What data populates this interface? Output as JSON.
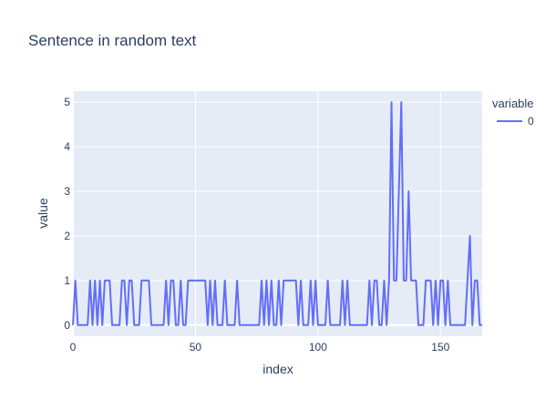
{
  "chart_data": {
    "type": "line",
    "title": "Sentence in random text",
    "xlabel": "index",
    "ylabel": "value",
    "xlim": [
      0,
      167
    ],
    "ylim": [
      -0.25,
      5.25
    ],
    "xticks": [
      0,
      50,
      100,
      150
    ],
    "yticks": [
      0,
      1,
      2,
      3,
      4,
      5
    ],
    "legend_title": "variable",
    "grid": true,
    "legend_position": "right",
    "colors": {
      "plot_bg": "#e5ecf6",
      "grid": "#ffffff",
      "line": "#636efa",
      "text": "#2a3f5f"
    },
    "series": [
      {
        "name": "0",
        "x": [
          0,
          1,
          2,
          3,
          4,
          5,
          6,
          7,
          8,
          9,
          10,
          11,
          12,
          13,
          14,
          15,
          16,
          17,
          18,
          19,
          20,
          21,
          22,
          23,
          24,
          25,
          26,
          27,
          28,
          29,
          30,
          31,
          32,
          33,
          34,
          35,
          36,
          37,
          38,
          39,
          40,
          41,
          42,
          43,
          44,
          45,
          46,
          47,
          48,
          49,
          50,
          51,
          52,
          53,
          54,
          55,
          56,
          57,
          58,
          59,
          60,
          61,
          62,
          63,
          64,
          65,
          66,
          67,
          68,
          69,
          70,
          71,
          72,
          73,
          74,
          75,
          76,
          77,
          78,
          79,
          80,
          81,
          82,
          83,
          84,
          85,
          86,
          87,
          88,
          89,
          90,
          91,
          92,
          93,
          94,
          95,
          96,
          97,
          98,
          99,
          100,
          101,
          102,
          103,
          104,
          105,
          106,
          107,
          108,
          109,
          110,
          111,
          112,
          113,
          114,
          115,
          116,
          117,
          118,
          119,
          120,
          121,
          122,
          123,
          124,
          125,
          126,
          127,
          128,
          129,
          130,
          131,
          132,
          133,
          134,
          135,
          136,
          137,
          138,
          139,
          140,
          141,
          142,
          143,
          144,
          145,
          146,
          147,
          148,
          149,
          150,
          151,
          152,
          153,
          154,
          155,
          156,
          157,
          158,
          159,
          160,
          161,
          162,
          163,
          164,
          165,
          166,
          167
        ],
        "values": [
          0,
          1,
          0,
          0,
          0,
          0,
          0,
          1,
          0,
          1,
          0,
          1,
          0,
          1,
          1,
          1,
          0,
          0,
          0,
          0,
          1,
          1,
          0,
          1,
          1,
          0,
          0,
          0,
          1,
          1,
          1,
          1,
          0,
          0,
          0,
          0,
          0,
          0,
          1,
          0,
          1,
          1,
          0,
          0,
          1,
          0,
          0,
          1,
          1,
          1,
          1,
          1,
          1,
          1,
          1,
          0,
          1,
          0,
          1,
          0,
          0,
          0,
          1,
          0,
          0,
          0,
          0,
          1,
          0,
          0,
          0,
          0,
          0,
          0,
          0,
          0,
          0,
          1,
          0,
          1,
          0,
          1,
          0,
          0,
          1,
          0,
          1,
          1,
          1,
          1,
          1,
          1,
          0,
          1,
          0,
          0,
          0,
          1,
          0,
          1,
          0,
          0,
          0,
          0,
          1,
          0,
          0,
          0,
          0,
          0,
          1,
          0,
          1,
          0,
          0,
          0,
          0,
          0,
          0,
          0,
          0,
          1,
          0,
          1,
          1,
          0,
          0,
          1,
          0,
          1,
          5,
          1,
          1,
          3,
          5,
          1,
          1,
          3,
          1,
          1,
          1,
          0,
          0,
          0,
          1,
          1,
          1,
          0,
          1,
          0,
          1,
          1,
          0,
          1,
          0,
          0,
          0,
          0,
          0,
          0,
          0,
          1,
          2,
          0,
          1,
          1,
          0,
          0
        ]
      }
    ]
  }
}
